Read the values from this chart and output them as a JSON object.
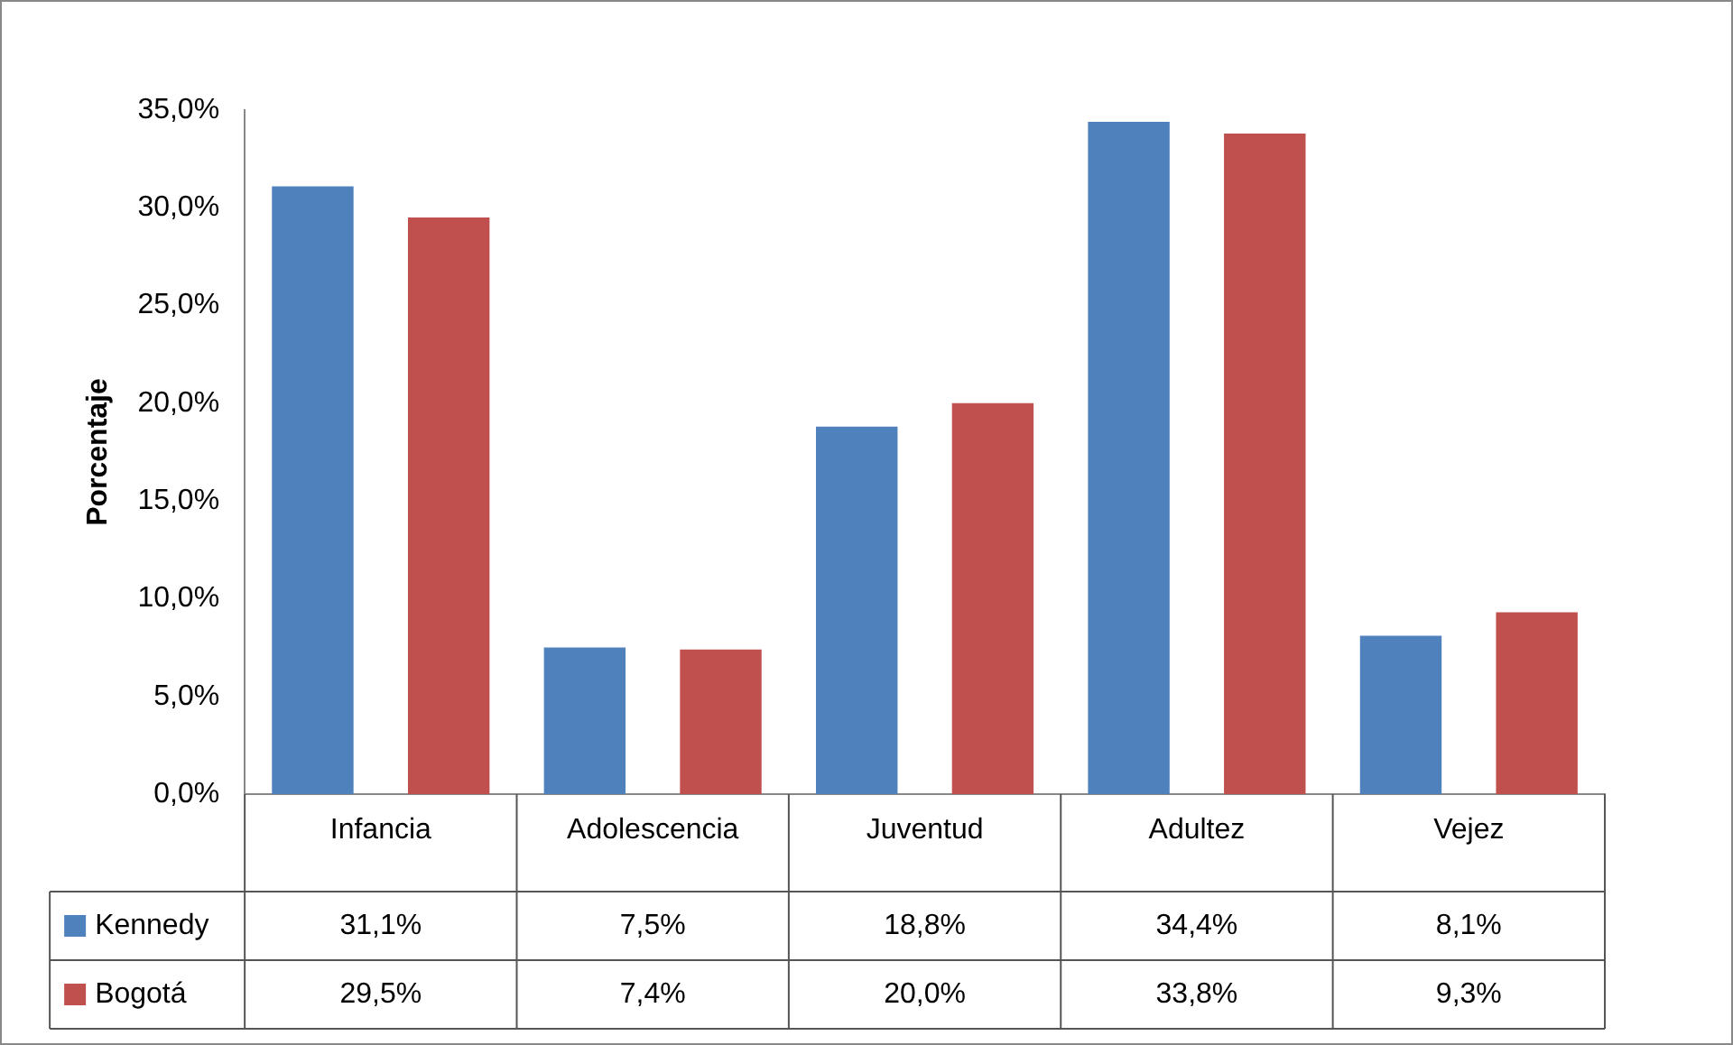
{
  "chart_data": {
    "type": "bar",
    "ylabel": "Porcentaje",
    "categories": [
      "Infancia",
      "Adolescencia",
      "Juventud",
      "Adultez",
      "Vejez"
    ],
    "series": [
      {
        "name": "Kennedy",
        "color": "#4f81bd",
        "values": [
          31.1,
          7.5,
          18.8,
          34.4,
          8.1
        ],
        "value_labels": [
          "31,1%",
          "7,5%",
          "18,8%",
          "34,4%",
          "8,1%"
        ]
      },
      {
        "name": "Bogotá",
        "color": "#c0504d",
        "values": [
          29.5,
          7.4,
          20.0,
          33.8,
          9.3
        ],
        "value_labels": [
          "29,5%",
          "7,4%",
          "20,0%",
          "33,8%",
          "9,3%"
        ]
      }
    ],
    "ylim": [
      0,
      35
    ],
    "yticks": [
      {
        "value": 0,
        "label": "0,0%"
      },
      {
        "value": 5,
        "label": "5,0%"
      },
      {
        "value": 10,
        "label": "10,0%"
      },
      {
        "value": 15,
        "label": "15,0%"
      },
      {
        "value": 20,
        "label": "20,0%"
      },
      {
        "value": 25,
        "label": "25,0%"
      },
      {
        "value": 30,
        "label": "30,0%"
      },
      {
        "value": 35,
        "label": "35,0%"
      }
    ],
    "grid": false,
    "legend": "bottom left"
  }
}
